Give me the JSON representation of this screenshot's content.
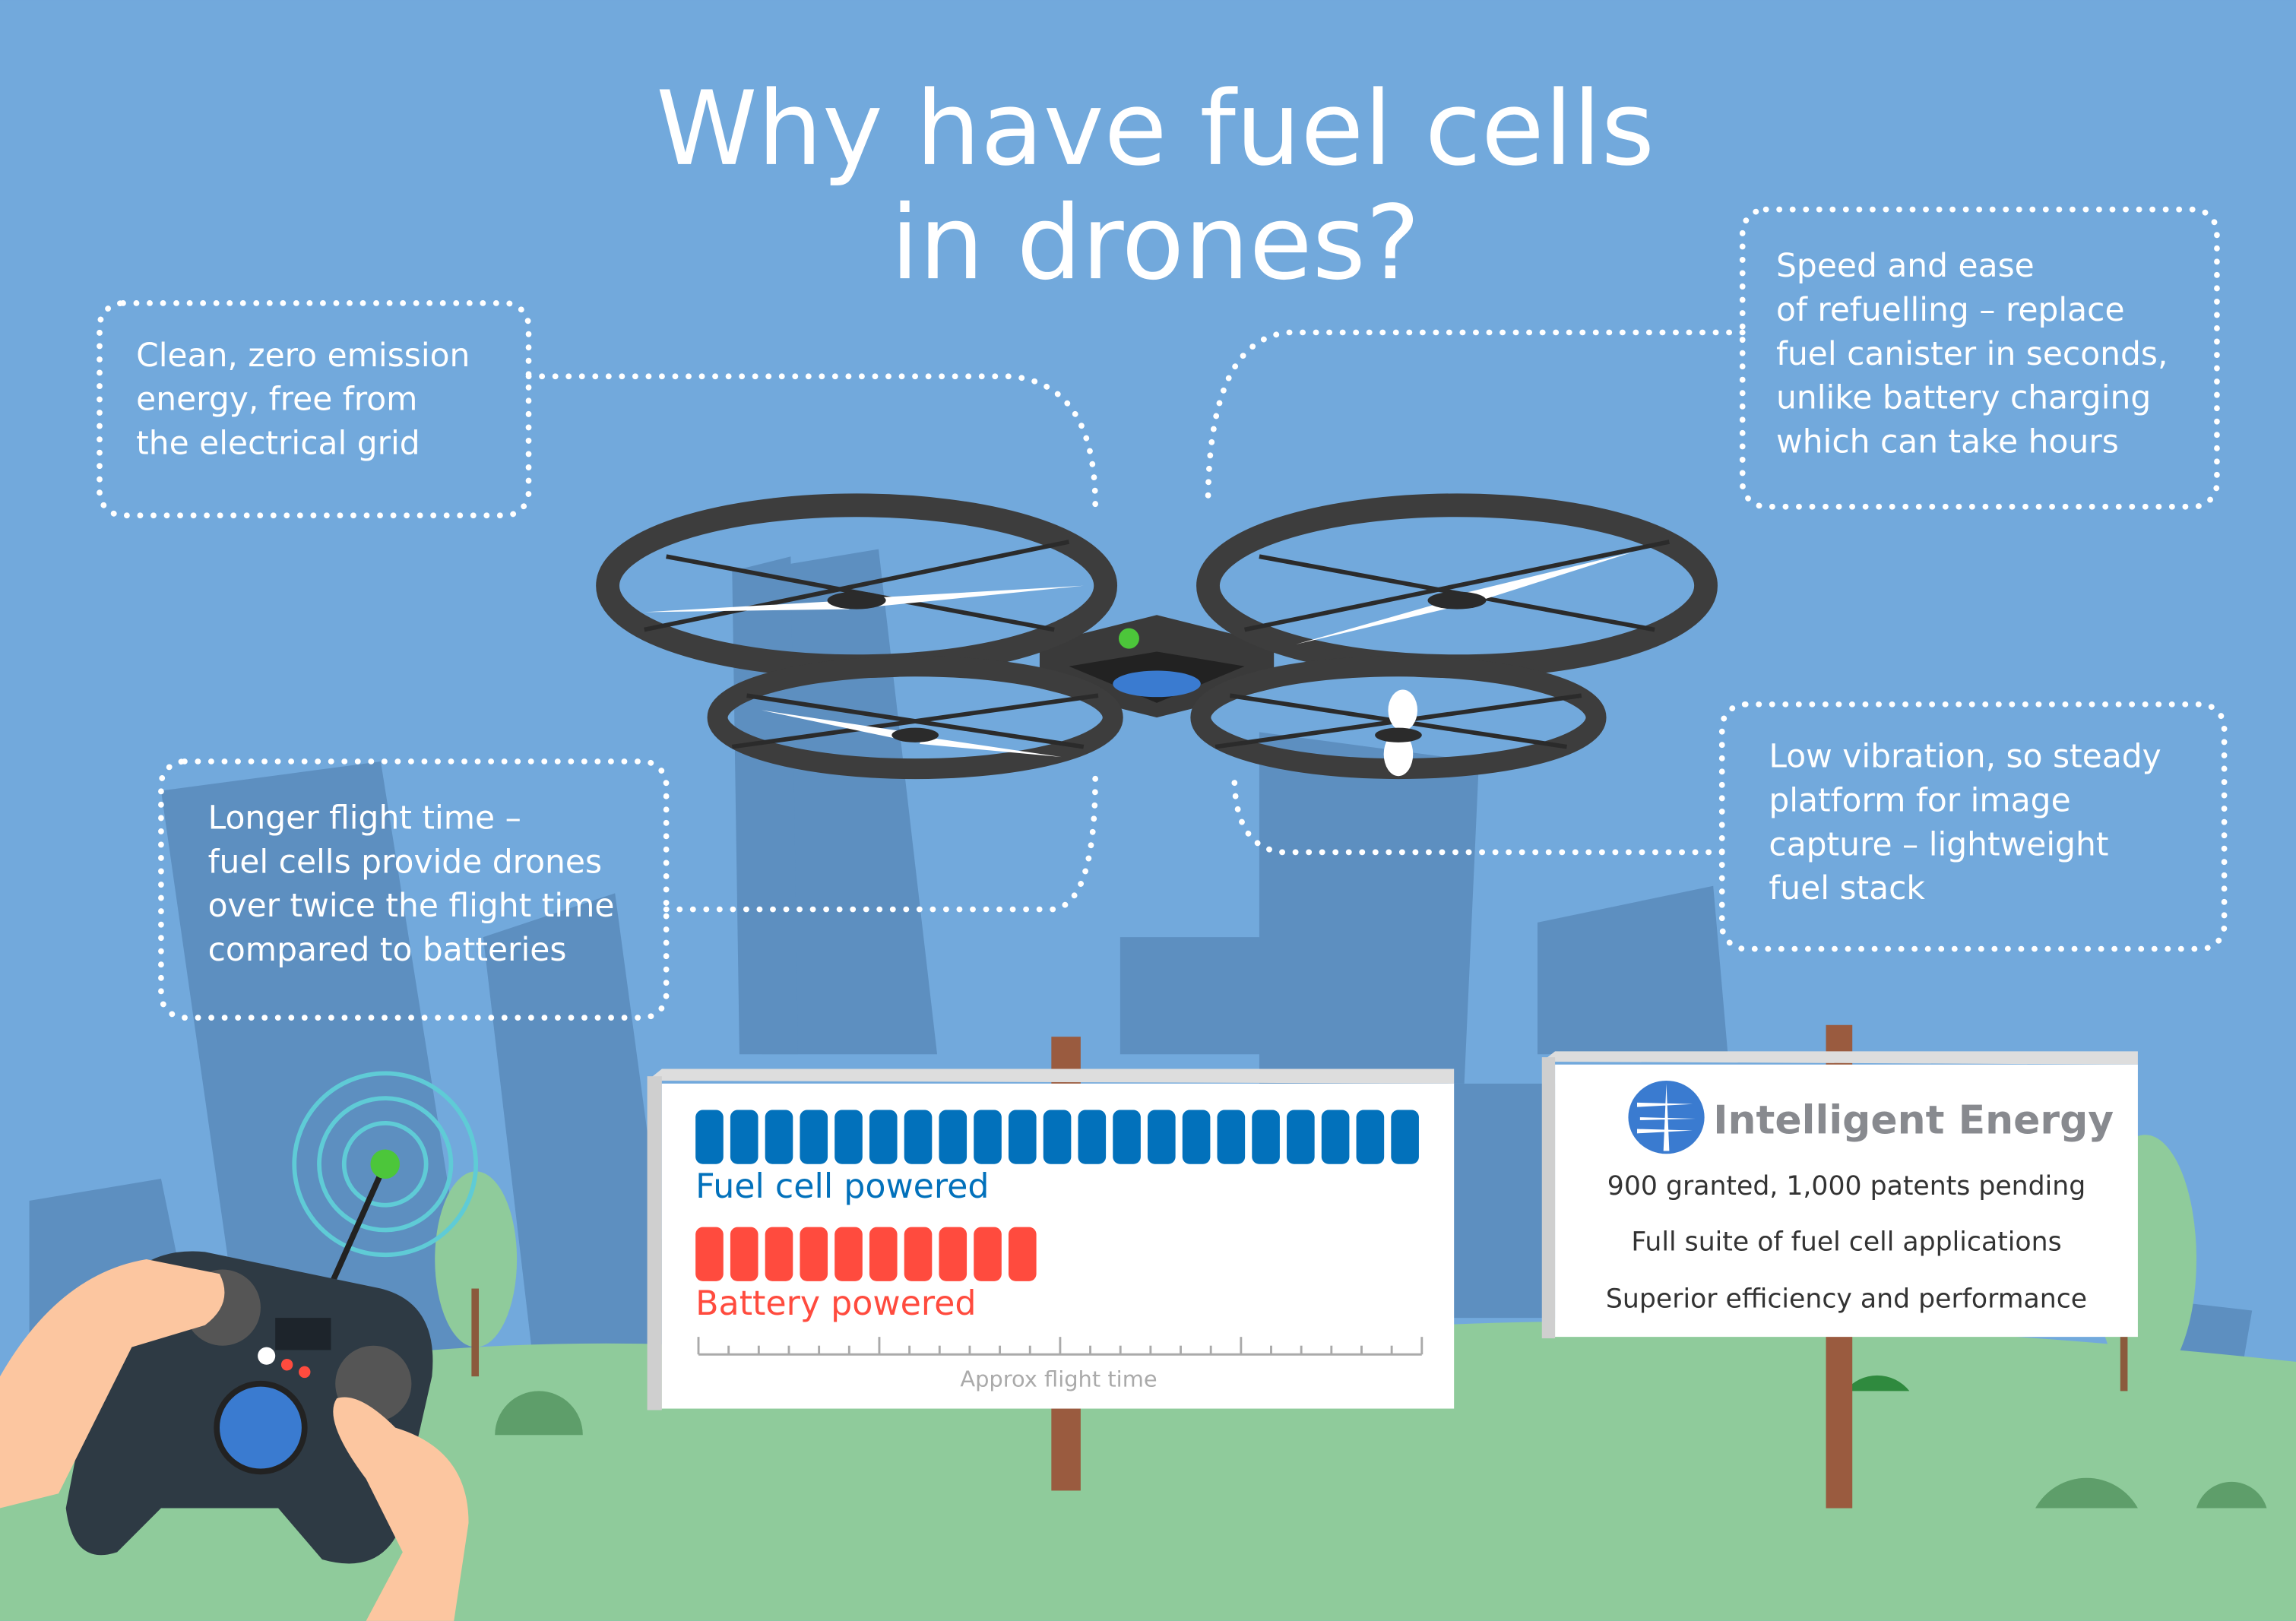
{
  "title": {
    "line1": "Why have fuel cells",
    "line2": "in drones?"
  },
  "callouts": {
    "clean": [
      "Clean, zero emission",
      "energy, free from",
      "the electrical grid"
    ],
    "refuel": [
      "Speed and ease",
      "of refuelling – replace",
      "fuel canister in seconds,",
      "unlike battery charging",
      "which can take hours"
    ],
    "flight": [
      "Longer flight time –",
      "fuel cells provide drones",
      "over twice the flight time",
      "compared to batteries"
    ],
    "vibration": [
      "Low vibration, so steady",
      "platform for image",
      "capture – lightweight",
      "fuel stack"
    ]
  },
  "comparison": {
    "fuel_label": "Fuel cell powered",
    "battery_label": "Battery powered",
    "axis_label": "Approx flight time",
    "fuel_segments": 21,
    "battery_segments": 10,
    "fuel_color": "#0271bb",
    "battery_color": "#ff4b3e"
  },
  "company": {
    "name": "Intelligent Energy",
    "facts": [
      "900 granted, 1,000 patents pending",
      "Full suite of fuel cell applications",
      "Superior efficiency and performance"
    ]
  },
  "colors": {
    "sky": "#72a9dc",
    "buildings": "#5d8fc0",
    "grass": "#8fcb9b",
    "logo": "#3a7bd0"
  }
}
